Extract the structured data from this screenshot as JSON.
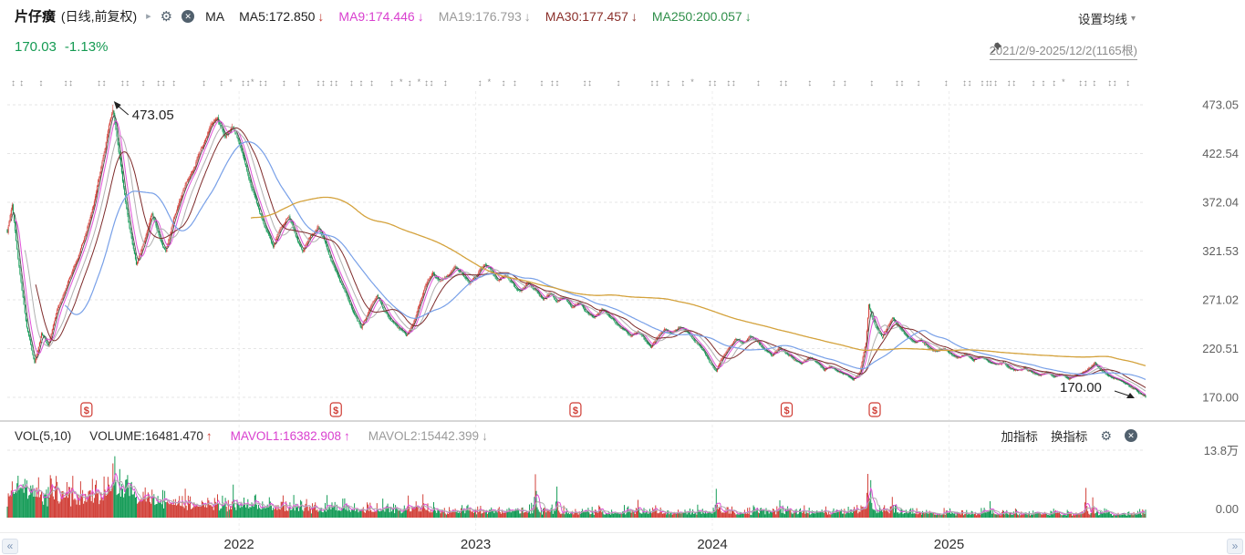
{
  "header": {
    "symbol": "片仔癀",
    "chart_type": "(日线,前复权)",
    "caret": "▸",
    "ma_label": "MA",
    "ma_items": [
      {
        "text": "MA5:172.850",
        "arrow": "↓",
        "color": "#1f1f1f",
        "arrow_color": "#c03a32"
      },
      {
        "text": "MA9:174.446",
        "arrow": "↓",
        "color": "#d940cf",
        "arrow_color": "#d940cf"
      },
      {
        "text": "MA19:176.793",
        "arrow": "↓",
        "color": "#9a9a9a",
        "arrow_color": "#9a9a9a"
      },
      {
        "text": "MA30:177.457",
        "arrow": "↓",
        "color": "#8a2f2a",
        "arrow_color": "#8a2f2a"
      },
      {
        "text": "MA250:200.057",
        "arrow": "↓",
        "color": "#2f8f4a",
        "arrow_color": "#2f8f4a"
      }
    ],
    "settings_label": "设置均线",
    "settings_caret": "▾",
    "price": "170.03",
    "change": "-1.13%",
    "date_range": "2021/2/9-2025/12/2(1165根)"
  },
  "volume_header": {
    "vol_label": "VOL(5,10)",
    "items": [
      {
        "text": "VOLUME:16481.470",
        "arrow": "↑",
        "color": "#2b2b2b",
        "arrow_color": "#cf3b33"
      },
      {
        "text": "MAVOL1:16382.908",
        "arrow": "↑",
        "color": "#d940cf",
        "arrow_color": "#d940cf"
      },
      {
        "text": "MAVOL2:15442.399",
        "arrow": "↓",
        "color": "#9a9a9a",
        "arrow_color": "#9a9a9a"
      }
    ],
    "add_indicator": "加指标",
    "switch_indicator": "换指标"
  },
  "nav": {
    "scroll_left": "«",
    "scroll_right": "»"
  },
  "colors": {
    "up": "#d2423a",
    "down": "#169c58",
    "ma5": "#4a4a4a",
    "ma9": "#e052d8",
    "ma19": "#b0b0b0",
    "ma30": "#7e2b2b",
    "ma60": "#78a0e8",
    "ma250": "#d4a23c",
    "grid": "#e5e5e5",
    "vgrid": "#ededed",
    "axis_text": "#5f5f5f",
    "year_text": "#2e2e2e",
    "marker_red": "#cf3b33",
    "event_icon": "#909090",
    "annotation": "#222222"
  },
  "chart_data": {
    "type": "candlestick",
    "symbol": "片仔癀",
    "period": "日线",
    "adjustment": "前复权",
    "date_range": {
      "start": "2021/2/9",
      "end": "2025/12/2",
      "bars": 1165
    },
    "last": {
      "close": 170.03,
      "change_pct": -1.13
    },
    "period_high": 473.05,
    "ma_values": {
      "MA5": 172.85,
      "MA9": 174.446,
      "MA19": 176.793,
      "MA30": 177.457,
      "MA250": 200.057
    },
    "volume": {
      "current": 16481.47,
      "mavol1": 16382.908,
      "mavol2": 15442.399
    },
    "y_axis": {
      "min": 170.0,
      "max": 473.05,
      "tick_labels": [
        "473.05",
        "422.54",
        "372.04",
        "321.53",
        "271.02",
        "220.51",
        "170.00"
      ]
    },
    "volume_axis": {
      "tick_labels": [
        "13.8万",
        "0.00"
      ],
      "max_value": 138000
    },
    "x_axis": {
      "ticks": [
        "2022",
        "2023",
        "2024",
        "2025"
      ]
    },
    "x_tick_bars": [
      237,
      479,
      721,
      963
    ],
    "annotations": {
      "period_high_label": "473.05",
      "last_price_label": "170.00"
    },
    "dividend_marker_bars": [
      81,
      336,
      581,
      797,
      887
    ],
    "price_path_anchors": [
      [
        0,
        340
      ],
      [
        5,
        368
      ],
      [
        12,
        305
      ],
      [
        20,
        242
      ],
      [
        28,
        206
      ],
      [
        35,
        236
      ],
      [
        42,
        224
      ],
      [
        50,
        258
      ],
      [
        60,
        284
      ],
      [
        70,
        310
      ],
      [
        80,
        338
      ],
      [
        90,
        378
      ],
      [
        100,
        428
      ],
      [
        105,
        455
      ],
      [
        108,
        468
      ],
      [
        112,
        438
      ],
      [
        118,
        392
      ],
      [
        125,
        345
      ],
      [
        132,
        306
      ],
      [
        140,
        330
      ],
      [
        148,
        360
      ],
      [
        155,
        336
      ],
      [
        162,
        320
      ],
      [
        170,
        354
      ],
      [
        180,
        386
      ],
      [
        190,
        406
      ],
      [
        200,
        430
      ],
      [
        208,
        452
      ],
      [
        215,
        460
      ],
      [
        222,
        438
      ],
      [
        230,
        452
      ],
      [
        238,
        430
      ],
      [
        245,
        404
      ],
      [
        252,
        380
      ],
      [
        258,
        362
      ],
      [
        265,
        342
      ],
      [
        272,
        326
      ],
      [
        280,
        346
      ],
      [
        288,
        356
      ],
      [
        295,
        336
      ],
      [
        302,
        320
      ],
      [
        310,
        336
      ],
      [
        318,
        346
      ],
      [
        325,
        330
      ],
      [
        332,
        310
      ],
      [
        340,
        290
      ],
      [
        348,
        272
      ],
      [
        355,
        256
      ],
      [
        362,
        242
      ],
      [
        370,
        260
      ],
      [
        378,
        276
      ],
      [
        385,
        262
      ],
      [
        392,
        250
      ],
      [
        400,
        242
      ],
      [
        408,
        233
      ],
      [
        415,
        246
      ],
      [
        422,
        268
      ],
      [
        428,
        288
      ],
      [
        435,
        300
      ],
      [
        442,
        289
      ],
      [
        450,
        296
      ],
      [
        458,
        306
      ],
      [
        465,
        298
      ],
      [
        472,
        289
      ],
      [
        480,
        296
      ],
      [
        488,
        308
      ],
      [
        495,
        300
      ],
      [
        502,
        291
      ],
      [
        510,
        298
      ],
      [
        518,
        286
      ],
      [
        525,
        279
      ],
      [
        532,
        288
      ],
      [
        540,
        281
      ],
      [
        548,
        271
      ],
      [
        555,
        278
      ],
      [
        562,
        269
      ],
      [
        570,
        273
      ],
      [
        578,
        263
      ],
      [
        585,
        268
      ],
      [
        592,
        258
      ],
      [
        600,
        253
      ],
      [
        608,
        262
      ],
      [
        615,
        255
      ],
      [
        622,
        248
      ],
      [
        630,
        241
      ],
      [
        638,
        233
      ],
      [
        645,
        239
      ],
      [
        652,
        229
      ],
      [
        658,
        221
      ],
      [
        665,
        232
      ],
      [
        672,
        241
      ],
      [
        680,
        236
      ],
      [
        688,
        243
      ],
      [
        695,
        237
      ],
      [
        702,
        231
      ],
      [
        710,
        221
      ],
      [
        718,
        206
      ],
      [
        725,
        196
      ],
      [
        730,
        209
      ],
      [
        738,
        223
      ],
      [
        745,
        231
      ],
      [
        752,
        226
      ],
      [
        760,
        233
      ],
      [
        768,
        227
      ],
      [
        775,
        219
      ],
      [
        782,
        213
      ],
      [
        790,
        221
      ],
      [
        798,
        215
      ],
      [
        805,
        209
      ],
      [
        812,
        205
      ],
      [
        820,
        211
      ],
      [
        828,
        206
      ],
      [
        835,
        199
      ],
      [
        842,
        203
      ],
      [
        850,
        197
      ],
      [
        858,
        193
      ],
      [
        865,
        189
      ],
      [
        872,
        196
      ],
      [
        878,
        226
      ],
      [
        881,
        266
      ],
      [
        885,
        251
      ],
      [
        890,
        239
      ],
      [
        895,
        231
      ],
      [
        900,
        243
      ],
      [
        905,
        253
      ],
      [
        910,
        246
      ],
      [
        915,
        239
      ],
      [
        922,
        231
      ],
      [
        928,
        225
      ],
      [
        935,
        229
      ],
      [
        942,
        221
      ],
      [
        950,
        217
      ],
      [
        958,
        221
      ],
      [
        965,
        215
      ],
      [
        972,
        211
      ],
      [
        980,
        215
      ],
      [
        988,
        209
      ],
      [
        995,
        213
      ],
      [
        1002,
        207
      ],
      [
        1010,
        203
      ],
      [
        1018,
        206
      ],
      [
        1025,
        201
      ],
      [
        1032,
        198
      ],
      [
        1040,
        201
      ],
      [
        1048,
        196
      ],
      [
        1055,
        193
      ],
      [
        1062,
        196
      ],
      [
        1070,
        191
      ],
      [
        1078,
        194
      ],
      [
        1085,
        189
      ],
      [
        1092,
        193
      ],
      [
        1100,
        197
      ],
      [
        1108,
        201
      ],
      [
        1112,
        206
      ],
      [
        1118,
        199
      ],
      [
        1125,
        193
      ],
      [
        1132,
        189
      ],
      [
        1140,
        185
      ],
      [
        1148,
        181
      ],
      [
        1155,
        176
      ],
      [
        1160,
        173
      ],
      [
        1164,
        170
      ]
    ],
    "volume_profile_anchors": [
      [
        0,
        42000
      ],
      [
        108,
        52000
      ],
      [
        237,
        30000
      ],
      [
        360,
        22000
      ],
      [
        479,
        20000
      ],
      [
        600,
        17000
      ],
      [
        721,
        16000
      ],
      [
        880,
        18000
      ],
      [
        963,
        14000
      ],
      [
        1100,
        12500
      ],
      [
        1164,
        11000
      ]
    ],
    "volume_spikes": [
      [
        4,
        62000
      ],
      [
        10,
        72000
      ],
      [
        24,
        58000
      ],
      [
        103,
        86000
      ],
      [
        108,
        118000
      ],
      [
        110,
        138000
      ],
      [
        140,
        45000
      ],
      [
        215,
        52000
      ],
      [
        231,
        62000
      ],
      [
        300,
        40000
      ],
      [
        410,
        46000
      ],
      [
        425,
        52000
      ],
      [
        540,
        98000
      ],
      [
        562,
        58000
      ],
      [
        645,
        38000
      ],
      [
        725,
        56000
      ],
      [
        790,
        34000
      ],
      [
        880,
        88000
      ],
      [
        883,
        70000
      ],
      [
        905,
        46000
      ],
      [
        1005,
        30000
      ],
      [
        1103,
        56000
      ],
      [
        1110,
        38000
      ],
      [
        1158,
        20000
      ]
    ]
  }
}
